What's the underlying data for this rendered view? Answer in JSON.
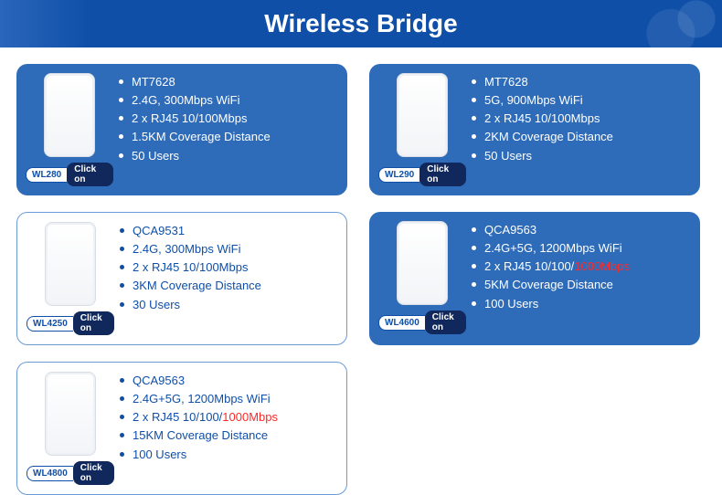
{
  "header": {
    "title": "Wireless Bridge"
  },
  "colors": {
    "header_bg": "#0f4fa8",
    "card_filled": "#2e6bb8",
    "card_outline_border": "#6a9bd6",
    "text_outline": "#0f4fa8",
    "highlight": "#ff2a2a",
    "btn_bg": "#10285c"
  },
  "click_label": "Click on",
  "products": [
    {
      "model": "WL280",
      "variant": "filled",
      "specs": [
        "MT7628",
        "2.4G, 300Mbps WiFi",
        "2 x RJ45 10/100Mbps",
        "1.5KM Coverage Distance",
        "50 Users"
      ],
      "highlight_index": null,
      "highlight_text": null
    },
    {
      "model": "WL290",
      "variant": "filled",
      "specs": [
        "MT7628",
        "5G, 900Mbps WiFi",
        "2 x RJ45 10/100Mbps",
        "2KM Coverage Distance",
        "50 Users"
      ],
      "highlight_index": null,
      "highlight_text": null
    },
    {
      "model": "WL4250",
      "variant": "outline",
      "specs": [
        "QCA9531",
        "2.4G, 300Mbps WiFi",
        "2 x RJ45 10/100Mbps",
        "3KM Coverage Distance",
        "30 Users"
      ],
      "highlight_index": null,
      "highlight_text": null
    },
    {
      "model": "WL4600",
      "variant": "filled",
      "specs": [
        "QCA9563",
        "2.4G+5G, 1200Mbps WiFi",
        "2 x RJ45 10/100/",
        "5KM Coverage Distance",
        "100 Users"
      ],
      "highlight_index": 2,
      "highlight_text": "1000Mbps"
    },
    {
      "model": "WL4800",
      "variant": "outline",
      "specs": [
        "QCA9563",
        "2.4G+5G, 1200Mbps WiFi",
        "2 x RJ45 10/100/",
        "15KM Coverage Distance",
        "100 Users"
      ],
      "highlight_index": 2,
      "highlight_text": "1000Mbps"
    }
  ]
}
